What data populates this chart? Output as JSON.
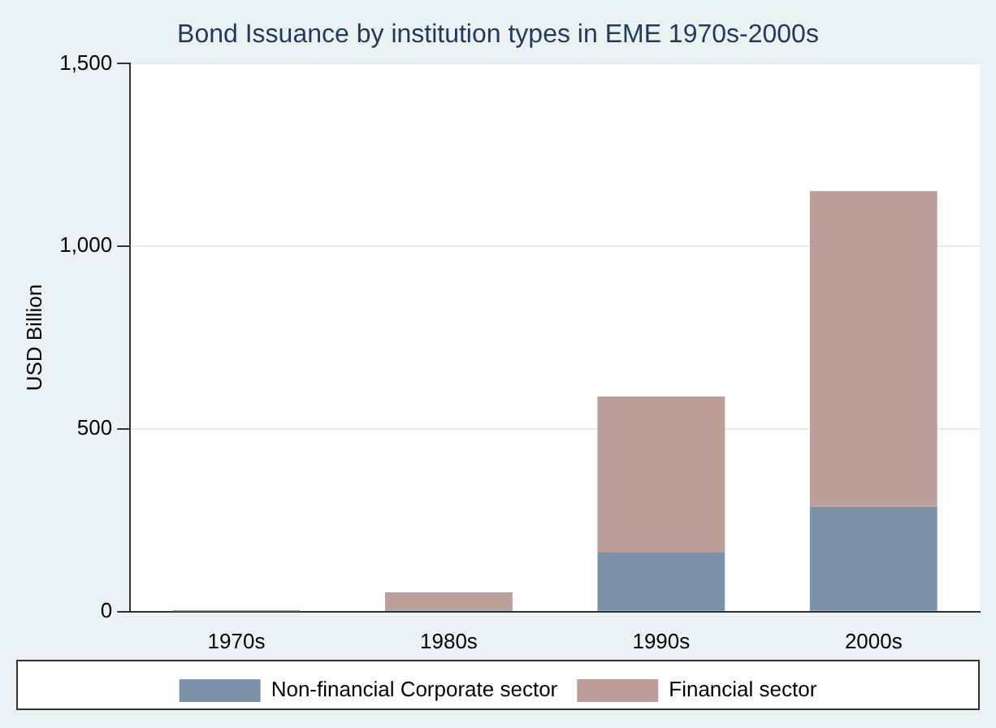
{
  "chart_data": {
    "type": "bar",
    "title": "Bond Issuance by institution types in EME 1970s-2000s",
    "ylabel": "USD Billion",
    "categories": [
      "1970s",
      "1980s",
      "1990s",
      "2000s"
    ],
    "stacked": true,
    "series": [
      {
        "name": "Non-financial Corporate sector",
        "color": "#7b92a8",
        "values": [
          1,
          5,
          162,
          287
        ]
      },
      {
        "name": "Financial sector",
        "color": "#bd9e98",
        "values": [
          3,
          48,
          427,
          864
        ]
      }
    ],
    "ylim": [
      0,
      1500
    ],
    "yticks": [
      0,
      500,
      {
        "value": 1000,
        "label": "1,000"
      },
      {
        "value": 1500,
        "label": "1,500"
      }
    ],
    "grid": "y",
    "legend": "bottom"
  }
}
